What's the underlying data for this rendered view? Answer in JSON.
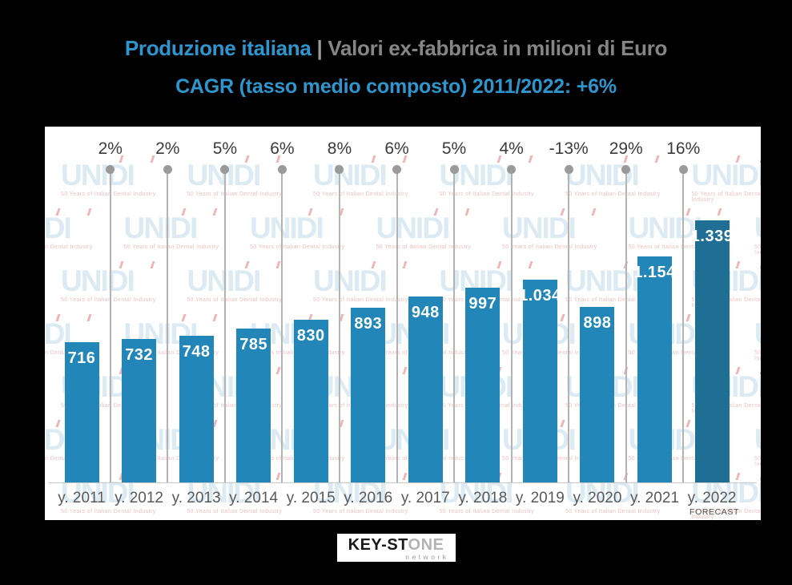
{
  "title": {
    "part1": "Produzione italiana",
    "separator": " | ",
    "part2": "Valori ex-fabbrica in milioni di Euro",
    "line2": "CAGR (tasso medio composto) 2011/2022: +6%"
  },
  "colors": {
    "page_background": "#000000",
    "panel_background": "#ffffff",
    "title_accent": "#2e96ce",
    "title_secondary": "#858585",
    "separator_gray": "#9a9a9a",
    "bar": "#2287b8",
    "forecast_bar": "#1f6f94",
    "connector_line": "#b3b3b3",
    "connector_dot": "#9a9a9a",
    "axis_line": "#c9c9c9",
    "watermark_blue": "#dcebf3",
    "watermark_red": "rgba(225,120,120,0.55)",
    "watermark_tagline": "rgba(225,140,140,0.55)"
  },
  "watermark": {
    "wordmark": "UNIDI",
    "tagline": "50 Years of Italian Dental Industry"
  },
  "chart_data": {
    "type": "bar",
    "title": "Produzione italiana | Valori ex-fabbrica in milioni di Euro",
    "subtitle": "CAGR (tasso medio composto) 2011/2022: +6%",
    "categories": [
      "y. 2011",
      "y. 2012",
      "y. 2013",
      "y. 2014",
      "y. 2015",
      "y. 2016",
      "y. 2017",
      "y. 2018",
      "y. 2019",
      "y. 2020",
      "y. 2021",
      "y. 2022"
    ],
    "values": [
      716,
      732,
      748,
      785,
      830,
      893,
      948,
      997,
      1034,
      898,
      1154,
      1339
    ],
    "value_labels": [
      "716",
      "732",
      "748",
      "785",
      "830",
      "893",
      "948",
      "997",
      "1.034",
      "898",
      "1.154",
      "1.339"
    ],
    "growth_percent_labels": [
      "2%",
      "2%",
      "5%",
      "6%",
      "8%",
      "6%",
      "5%",
      "4%",
      "-13%",
      "29%",
      "16%"
    ],
    "forecast_note": "FORECAST",
    "forecast_index": 11,
    "ylim": [
      0,
      1400
    ],
    "xlabel": "",
    "ylabel": "milioni di Euro",
    "legend": "none",
    "grid": "vertical connectors with dots between bars"
  },
  "footer_logo": {
    "part1": "KEY-ST",
    "part2": "ONE",
    "part2_color": "#b3b3b3",
    "part1_color": "#1a1a1a",
    "subtitle": "network",
    "subtitle_color": "#9a9a9a"
  }
}
